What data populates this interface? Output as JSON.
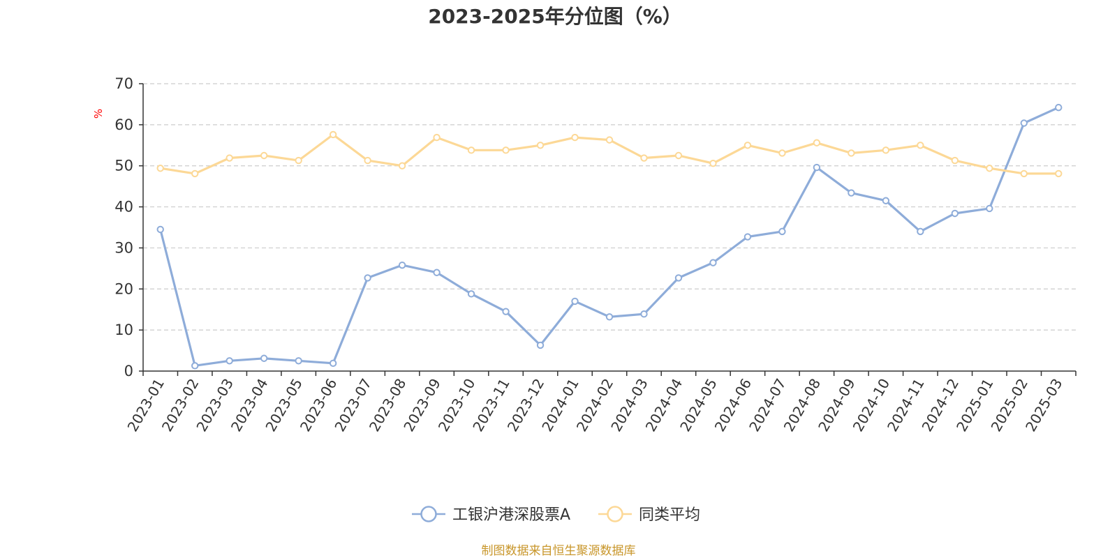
{
  "chart_data": {
    "type": "line",
    "title": "2023-2025年分位图（%）",
    "ylabel": "%",
    "ylim": [
      0,
      70
    ],
    "yticks": [
      0,
      10,
      20,
      30,
      40,
      50,
      60,
      70
    ],
    "grid": true,
    "legend_position": "bottom",
    "categories": [
      "2023-01",
      "2023-02",
      "2023-03",
      "2023-04",
      "2023-05",
      "2023-06",
      "2023-07",
      "2023-08",
      "2023-09",
      "2023-10",
      "2023-11",
      "2023-12",
      "2024-01",
      "2024-02",
      "2024-03",
      "2024-04",
      "2024-05",
      "2024-06",
      "2024-07",
      "2024-08",
      "2024-09",
      "2024-10",
      "2024-11",
      "2024-12",
      "2025-01",
      "2025-02",
      "2025-03"
    ],
    "series": [
      {
        "name": "工银沪港深股票A",
        "color": "#8eacd9",
        "values": [
          34.5,
          1.3,
          2.5,
          3.1,
          2.5,
          1.9,
          22.7,
          25.8,
          24.0,
          18.8,
          14.5,
          6.3,
          17.0,
          13.2,
          13.9,
          22.7,
          26.4,
          32.7,
          34.0,
          49.6,
          43.4,
          41.5,
          34.0,
          38.4,
          39.6,
          60.4,
          64.2
        ]
      },
      {
        "name": "同类平均",
        "color": "#fcd896",
        "values": [
          49.4,
          48.1,
          51.9,
          52.5,
          51.3,
          57.6,
          51.3,
          50.0,
          56.9,
          53.8,
          53.8,
          55.0,
          56.9,
          56.3,
          51.9,
          52.5,
          50.6,
          55.0,
          53.1,
          55.6,
          53.1,
          53.8,
          55.0,
          51.3,
          49.4,
          48.1,
          48.1
        ]
      }
    ]
  },
  "footer": {
    "source": "制图数据来自恒生聚源数据库",
    "source_color": "#c8962a"
  },
  "colors": {
    "grid": "#cccccc",
    "axis": "#333333",
    "unit": "#ff0000"
  }
}
